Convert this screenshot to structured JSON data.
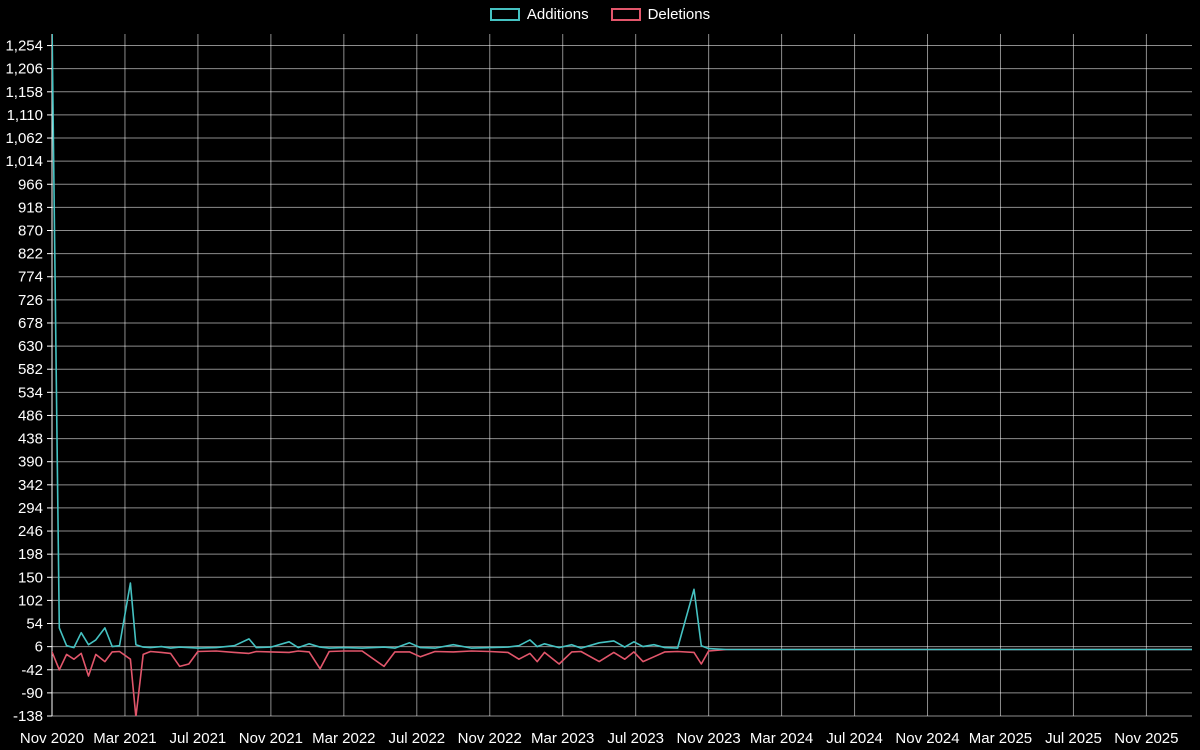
{
  "legend": {
    "items": [
      {
        "label": "Additions"
      },
      {
        "label": "Deletions"
      }
    ]
  },
  "chart_data": {
    "type": "line",
    "title": "",
    "xlabel": "",
    "ylabel": "",
    "grid": true,
    "legend_position": "top-center",
    "background_color": "#000000",
    "grid_color": "#ffffff",
    "text_color": "#ffffff",
    "x_axis": {
      "unit": "months since Nov 2020",
      "range_months": [
        0,
        62.5
      ],
      "tick_interval_months": 4,
      "tick_labels": [
        "Nov 2020",
        "Mar 2021",
        "Jul 2021",
        "Nov 2021",
        "Mar 2022",
        "Jul 2022",
        "Nov 2022",
        "Mar 2023",
        "Jul 2023",
        "Nov 2023",
        "Mar 2024",
        "Jul 2024",
        "Nov 2024",
        "Mar 2025",
        "Jul 2025",
        "Nov 2025"
      ]
    },
    "y_axis": {
      "min": -138,
      "max": 1278,
      "ticks": [
        -138,
        -90,
        -42,
        6,
        54,
        102,
        150,
        198,
        246,
        294,
        342,
        390,
        438,
        486,
        534,
        582,
        630,
        678,
        726,
        774,
        822,
        870,
        918,
        966,
        1014,
        1062,
        1110,
        1158,
        1206,
        1254
      ]
    },
    "series": [
      {
        "name": "Additions",
        "color": "#45c2c2",
        "points": [
          [
            0,
            1300
          ],
          [
            0.4,
            45
          ],
          [
            0.8,
            8
          ],
          [
            1.2,
            4
          ],
          [
            1.6,
            35
          ],
          [
            2.0,
            10
          ],
          [
            2.4,
            20
          ],
          [
            2.9,
            45
          ],
          [
            3.3,
            6
          ],
          [
            3.7,
            8
          ],
          [
            4.3,
            138
          ],
          [
            4.6,
            10
          ],
          [
            5.0,
            5
          ],
          [
            5.4,
            4
          ],
          [
            6.0,
            6
          ],
          [
            6.5,
            3
          ],
          [
            7.0,
            5
          ],
          [
            7.5,
            4
          ],
          [
            8.0,
            3
          ],
          [
            9.0,
            4
          ],
          [
            10.0,
            8
          ],
          [
            10.8,
            22
          ],
          [
            11.2,
            4
          ],
          [
            12.0,
            5
          ],
          [
            13.0,
            16
          ],
          [
            13.5,
            4
          ],
          [
            14.1,
            12
          ],
          [
            14.7,
            5
          ],
          [
            15.2,
            3
          ],
          [
            16.0,
            4
          ],
          [
            17.0,
            3
          ],
          [
            18.2,
            5
          ],
          [
            18.8,
            3
          ],
          [
            19.6,
            14
          ],
          [
            20.2,
            4
          ],
          [
            21.0,
            3
          ],
          [
            22.0,
            10
          ],
          [
            23.0,
            3
          ],
          [
            24.0,
            4
          ],
          [
            25.0,
            5
          ],
          [
            25.6,
            8
          ],
          [
            26.2,
            20
          ],
          [
            26.6,
            6
          ],
          [
            27.0,
            12
          ],
          [
            27.8,
            4
          ],
          [
            28.5,
            10
          ],
          [
            29.0,
            3
          ],
          [
            30.0,
            14
          ],
          [
            30.8,
            18
          ],
          [
            31.4,
            5
          ],
          [
            31.9,
            16
          ],
          [
            32.4,
            6
          ],
          [
            33.0,
            10
          ],
          [
            33.6,
            4
          ],
          [
            34.3,
            3
          ],
          [
            35.2,
            125
          ],
          [
            35.6,
            8
          ],
          [
            36.0,
            2
          ],
          [
            37.0,
            0
          ],
          [
            62.5,
            0
          ]
        ]
      },
      {
        "name": "Deletions",
        "color": "#e2566b",
        "points": [
          [
            0,
            -5
          ],
          [
            0.4,
            -42
          ],
          [
            0.8,
            -10
          ],
          [
            1.2,
            -20
          ],
          [
            1.6,
            -8
          ],
          [
            2.0,
            -55
          ],
          [
            2.4,
            -10
          ],
          [
            2.9,
            -25
          ],
          [
            3.3,
            -5
          ],
          [
            3.7,
            -4
          ],
          [
            4.3,
            -20
          ],
          [
            4.6,
            -140
          ],
          [
            5.0,
            -10
          ],
          [
            5.4,
            -4
          ],
          [
            6.0,
            -6
          ],
          [
            6.5,
            -8
          ],
          [
            7.0,
            -35
          ],
          [
            7.5,
            -30
          ],
          [
            8.0,
            -4
          ],
          [
            9.0,
            -3
          ],
          [
            10.0,
            -6
          ],
          [
            10.8,
            -8
          ],
          [
            11.2,
            -4
          ],
          [
            12.0,
            -5
          ],
          [
            13.0,
            -6
          ],
          [
            13.5,
            -3
          ],
          [
            14.1,
            -5
          ],
          [
            14.7,
            -40
          ],
          [
            15.2,
            -4
          ],
          [
            16.0,
            -3
          ],
          [
            17.0,
            -3
          ],
          [
            18.2,
            -35
          ],
          [
            18.8,
            -5
          ],
          [
            19.6,
            -5
          ],
          [
            20.2,
            -15
          ],
          [
            21.0,
            -4
          ],
          [
            22.0,
            -5
          ],
          [
            23.0,
            -3
          ],
          [
            24.0,
            -4
          ],
          [
            25.0,
            -6
          ],
          [
            25.6,
            -20
          ],
          [
            26.2,
            -8
          ],
          [
            26.6,
            -25
          ],
          [
            27.0,
            -6
          ],
          [
            27.8,
            -30
          ],
          [
            28.5,
            -5
          ],
          [
            29.0,
            -4
          ],
          [
            30.0,
            -25
          ],
          [
            30.8,
            -6
          ],
          [
            31.4,
            -20
          ],
          [
            31.9,
            -5
          ],
          [
            32.4,
            -25
          ],
          [
            33.0,
            -15
          ],
          [
            33.6,
            -5
          ],
          [
            34.3,
            -4
          ],
          [
            35.2,
            -6
          ],
          [
            35.6,
            -30
          ],
          [
            36.0,
            -3
          ],
          [
            37.0,
            0
          ],
          [
            62.5,
            0
          ]
        ]
      }
    ]
  }
}
